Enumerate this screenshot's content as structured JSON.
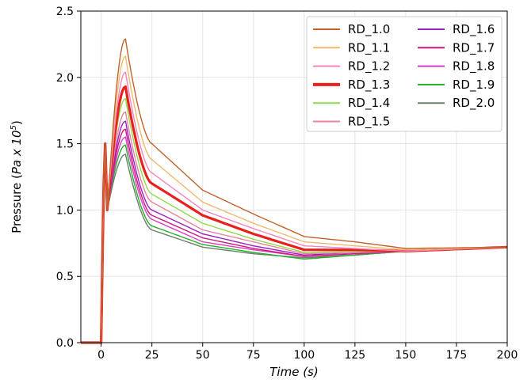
{
  "chart_data": {
    "type": "line",
    "title": "",
    "xlabel": "Time (s)",
    "ylabel": "Pressure (Pa x 10^5)",
    "ylabel_parts": {
      "prefix": "Pressure (",
      "italic": "Pa x 10",
      "sup": "5",
      "suffix": ")"
    },
    "xlim": [
      -10,
      200
    ],
    "ylim": [
      0.0,
      2.5
    ],
    "xticks": [
      0,
      25,
      50,
      75,
      100,
      125,
      150,
      175,
      200
    ],
    "yticks": [
      0.0,
      0.5,
      1.0,
      1.5,
      2.0,
      2.5
    ],
    "xtick_labels": [
      "0",
      "25",
      "50",
      "75",
      "100",
      "125",
      "150",
      "175",
      "200"
    ],
    "ytick_labels": [
      "0.0",
      "0.5",
      "1.0",
      "1.5",
      "2.0",
      "2.5"
    ],
    "grid": true,
    "legend_position": "top-right",
    "legend_columns": 2,
    "series": [
      {
        "name": "RD_1.0",
        "color": "#c0622a",
        "peak": 2.29,
        "v25": 1.5,
        "v50": 1.15,
        "v75": 0.97,
        "v100": 0.8,
        "v125": 0.76,
        "v150": 0.71
      },
      {
        "name": "RD_1.1",
        "color": "#f2b96e",
        "peak": 2.16,
        "v25": 1.38,
        "v50": 1.06,
        "v75": 0.9,
        "v100": 0.76,
        "v125": 0.73,
        "v150": 0.7
      },
      {
        "name": "RD_1.2",
        "color": "#f585c0",
        "peak": 2.04,
        "v25": 1.28,
        "v50": 1.0,
        "v75": 0.86,
        "v100": 0.73,
        "v125": 0.71,
        "v150": 0.69
      },
      {
        "name": "RD_1.3",
        "color": "#e8201c",
        "peak": 1.93,
        "v25": 1.2,
        "v50": 0.96,
        "v75": 0.82,
        "v100": 0.7,
        "v125": 0.7,
        "v150": 0.69,
        "bold": true
      },
      {
        "name": "RD_1.4",
        "color": "#8fd94a",
        "peak": 1.84,
        "v25": 1.12,
        "v50": 0.9,
        "v75": 0.78,
        "v100": 0.68,
        "v125": 0.69,
        "v150": 0.69
      },
      {
        "name": "RD_1.5",
        "color": "#e7849a",
        "peak": 1.74,
        "v25": 1.06,
        "v50": 0.85,
        "v75": 0.76,
        "v100": 0.67,
        "v125": 0.68,
        "v150": 0.69
      },
      {
        "name": "RD_1.6",
        "color": "#9a1fc2",
        "peak": 1.67,
        "v25": 1.0,
        "v50": 0.82,
        "v75": 0.73,
        "v100": 0.66,
        "v125": 0.68,
        "v150": 0.69
      },
      {
        "name": "RD_1.7",
        "color": "#d0157a",
        "peak": 1.61,
        "v25": 0.96,
        "v50": 0.79,
        "v75": 0.71,
        "v100": 0.65,
        "v125": 0.67,
        "v150": 0.69
      },
      {
        "name": "RD_1.8",
        "color": "#d83fc4",
        "peak": 1.55,
        "v25": 0.93,
        "v50": 0.76,
        "v75": 0.7,
        "v100": 0.65,
        "v125": 0.67,
        "v150": 0.69
      },
      {
        "name": "RD_1.9",
        "color": "#22b02a",
        "peak": 1.49,
        "v25": 0.88,
        "v50": 0.74,
        "v75": 0.68,
        "v100": 0.63,
        "v125": 0.66,
        "v150": 0.69
      },
      {
        "name": "RD_2.0",
        "color": "#6a806a",
        "peak": 1.42,
        "v25": 0.85,
        "v50": 0.72,
        "v75": 0.67,
        "v100": 0.64,
        "v125": 0.66,
        "v150": 0.69
      }
    ],
    "common": {
      "x_start": -10,
      "rise_start": 0,
      "spike_x": 2,
      "spike_y": 1.5,
      "dip_x": 3,
      "dip_y": 1.0,
      "peak_x": 12,
      "end_x": 200,
      "end_y": 0.72
    }
  }
}
